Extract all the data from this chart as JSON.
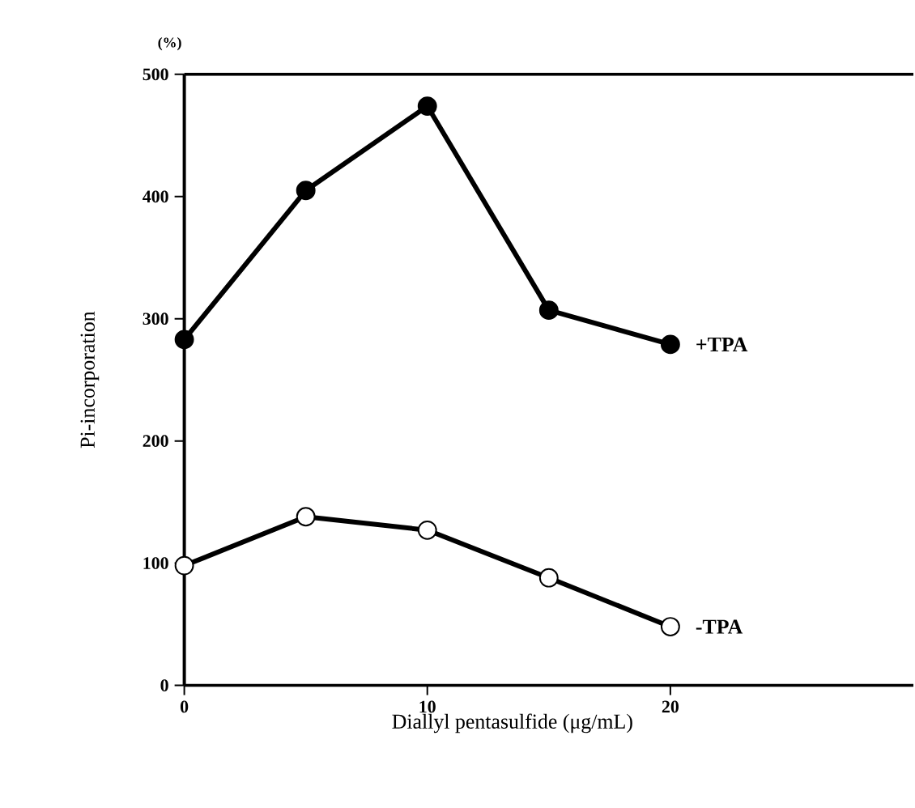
{
  "chart_data": {
    "type": "line",
    "xlabel": "Diallyl pentasulfide (μg/mL)",
    "ylabel": "Pi-incorporation",
    "annotations": [
      "(%)"
    ],
    "x": [
      0,
      5,
      10,
      15,
      20
    ],
    "series": [
      {
        "name": "+TPA",
        "color": "#000000",
        "values": [
          283,
          405,
          474,
          307,
          279
        ]
      },
      {
        "name": "-TPA",
        "color": "#000000",
        "values": [
          98,
          138,
          127,
          88,
          48
        ]
      }
    ],
    "xlim": [
      0,
      30
    ],
    "xticks": [
      0,
      10,
      20
    ],
    "ylim": [
      0,
      500
    ],
    "yticks": [
      0,
      100,
      200,
      300,
      400,
      500
    ],
    "marker": "circle",
    "line_style": "solid",
    "grid": false,
    "legend": false
  }
}
